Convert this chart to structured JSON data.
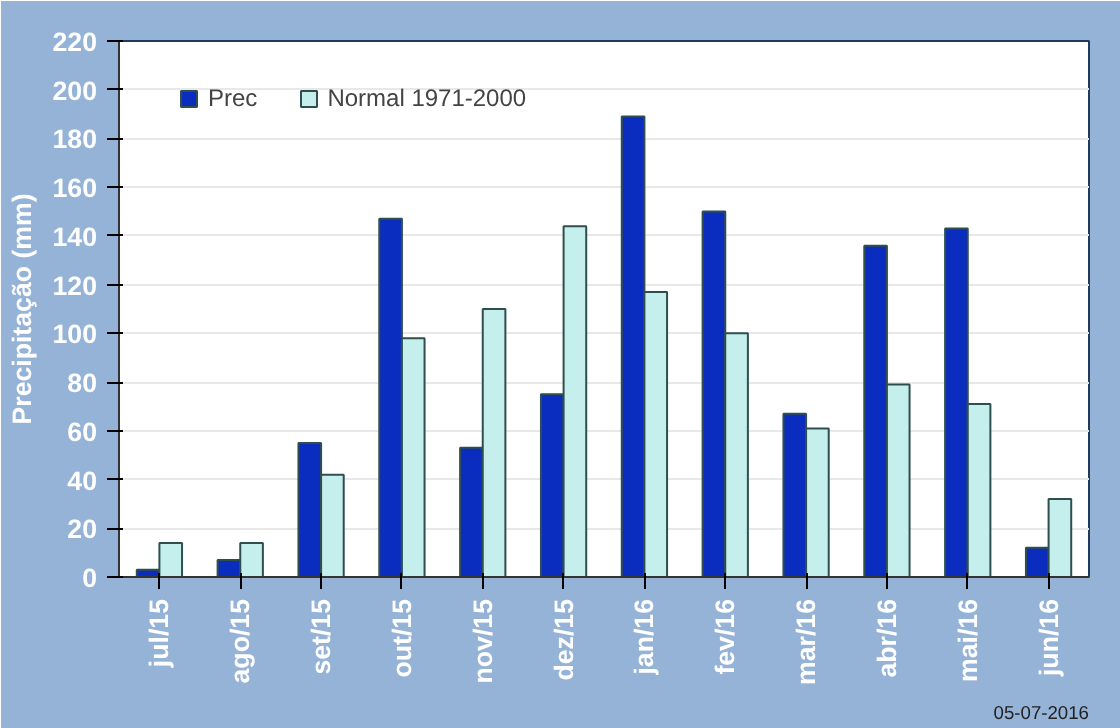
{
  "chart_data": {
    "type": "bar",
    "ylabel": "Precipitação (mm)",
    "categories": [
      "jul/15",
      "ago/15",
      "set/15",
      "out/15",
      "nov/15",
      "dez/15",
      "jan/16",
      "fev/16",
      "mar/16",
      "abr/16",
      "mai/16",
      "jun/16"
    ],
    "series": [
      {
        "name": "Prec",
        "color": "#0a2dbf",
        "values": [
          3,
          7,
          55,
          147,
          53,
          75,
          189,
          150,
          67,
          136,
          143,
          12
        ]
      },
      {
        "name": "Normal 1971-2000",
        "color": "#c4efec",
        "values": [
          14,
          14,
          42,
          98,
          110,
          144,
          117,
          100,
          61,
          79,
          71,
          32
        ]
      }
    ],
    "ylim": [
      0,
      220
    ],
    "yticks": [
      0,
      20,
      40,
      60,
      80,
      100,
      120,
      140,
      160,
      180,
      200,
      220
    ],
    "grid": "y",
    "legend": "top left",
    "annotations": [
      "05-07-2016"
    ]
  }
}
